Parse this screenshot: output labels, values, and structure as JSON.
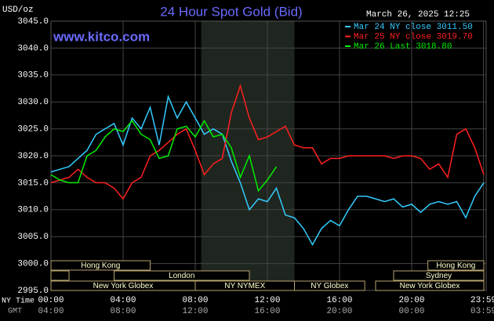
{
  "chart_data": {
    "type": "line",
    "title": "24 Hour Spot Gold (Bid)",
    "website": "www.kitco.com",
    "y_axis_label": "USD/oz",
    "timestamp": "March 26, 2025 12:25",
    "x_row_labels": [
      "NY Time",
      "GMT"
    ],
    "x": [
      0,
      0.5,
      1,
      1.5,
      2,
      2.5,
      3,
      3.5,
      4,
      4.5,
      5,
      5.5,
      6,
      6.5,
      7,
      7.5,
      8,
      8.5,
      9,
      9.5,
      10,
      10.5,
      11,
      11.5,
      12,
      12.5,
      13,
      13.5,
      14,
      14.5,
      15,
      15.5,
      16,
      16.5,
      17,
      17.5,
      18,
      18.5,
      19,
      19.5,
      20,
      20.5,
      21,
      21.5,
      22,
      22.5,
      23,
      23.5,
      24
    ],
    "series": [
      {
        "name": "Mar 24 NY close 3011.50",
        "color": "#33ccff",
        "values": [
          3017,
          3017.5,
          3018,
          3019.5,
          3021,
          3024,
          3025,
          3026,
          3022,
          3027,
          3025,
          3029,
          3022,
          3031,
          3027,
          3030,
          3027,
          3024,
          3025,
          3024,
          3019,
          3015,
          3010,
          3012,
          3011.5,
          3014,
          3009,
          3008.5,
          3006.5,
          3003.5,
          3006.5,
          3008,
          3007,
          3010,
          3012.5,
          3012.5,
          3012,
          3011.5,
          3012,
          3010.5,
          3011,
          3009.5,
          3011,
          3011.5,
          3011,
          3011.5,
          3008.5,
          3012.5,
          3015
        ]
      },
      {
        "name": "Mar 25 NY close 3019.70",
        "color": "#ff2020",
        "values": [
          3015,
          3015.5,
          3016,
          3017.5,
          3016,
          3015,
          3015,
          3014,
          3012,
          3015,
          3016,
          3020,
          3021,
          3022.5,
          3024,
          3025,
          3021,
          3016.5,
          3018.5,
          3019.5,
          3028,
          3033,
          3027,
          3023,
          3023.5,
          3024.5,
          3025.5,
          3022,
          3021.5,
          3021.5,
          3018.5,
          3019.5,
          3019.5,
          3020,
          3020,
          3020,
          3020,
          3020,
          3019.5,
          3020,
          3020,
          3019.5,
          3017.5,
          3018.5,
          3016,
          3024,
          3025,
          3021.5,
          3016.5
        ]
      },
      {
        "name": "Mar 26 Last 3018.80",
        "color": "#00ee00",
        "values": [
          3016.5,
          3015.5,
          3015,
          3015,
          3020,
          3021,
          3023.5,
          3025,
          3024.5,
          3026.5,
          3024,
          3023,
          3019.5,
          3020,
          3025,
          3025.5,
          3023.5,
          3026.5,
          3023.5,
          3024,
          3021.5,
          3016,
          3020,
          3013.5,
          3015.5,
          3018,
          null,
          null,
          null,
          null,
          null,
          null,
          null,
          null,
          null,
          null,
          null,
          null,
          null,
          null,
          null,
          null,
          null,
          null,
          null,
          null,
          null,
          null,
          null
        ]
      }
    ],
    "xlim": [
      0,
      24
    ],
    "xticks": [
      {
        "value": 0,
        "label": "00:00"
      },
      {
        "value": 4,
        "label": "04:00"
      },
      {
        "value": 8,
        "label": "08:00"
      },
      {
        "value": 12,
        "label": "12:00"
      },
      {
        "value": 16,
        "label": "16:00"
      },
      {
        "value": 20,
        "label": "20:00"
      },
      {
        "value": 23.98,
        "label": "23:59"
      }
    ],
    "gmt_labels": [
      "04:00",
      "08:00",
      "12:00",
      "16:00",
      "20:00",
      "00:00",
      "03:59"
    ],
    "ylim": [
      2995,
      3045
    ],
    "yticks": [
      {
        "value": 2995,
        "label": "2995.0"
      },
      {
        "value": 3000,
        "label": "3000.0"
      },
      {
        "value": 3005,
        "label": "3005.0"
      },
      {
        "value": 3010,
        "label": "3010.0"
      },
      {
        "value": 3015,
        "label": "3015.0"
      },
      {
        "value": 3020,
        "label": "3020.0"
      },
      {
        "value": 3025,
        "label": "3025.0"
      },
      {
        "value": 3030,
        "label": "3030.0"
      },
      {
        "value": 3035,
        "label": "3035.0"
      },
      {
        "value": 3040,
        "label": "3040.0"
      },
      {
        "value": 3045,
        "label": "3045.0"
      }
    ],
    "grid": true,
    "shaded_range": [
      8.33,
      13.5
    ],
    "sessions": [
      [
        {
          "label": "Hong Kong",
          "start": 0,
          "end": 5.5
        },
        {
          "label": "Hong Kong",
          "start": 20.9,
          "end": 24
        }
      ],
      [
        {
          "label": null,
          "start": 0,
          "end": 1
        },
        {
          "label": "London",
          "start": 3.5,
          "end": 11
        },
        {
          "label": "Sydney",
          "start": 19,
          "end": 24
        }
      ],
      [
        {
          "label": "New York Globex",
          "start": 0,
          "end": 8
        },
        {
          "label": "NY NYMEX",
          "start": 8,
          "end": 13.5
        },
        {
          "label": "NY Globex",
          "start": 13.5,
          "end": 17.4
        },
        {
          "label": "New York Globex",
          "start": 18,
          "end": 24
        }
      ]
    ]
  }
}
